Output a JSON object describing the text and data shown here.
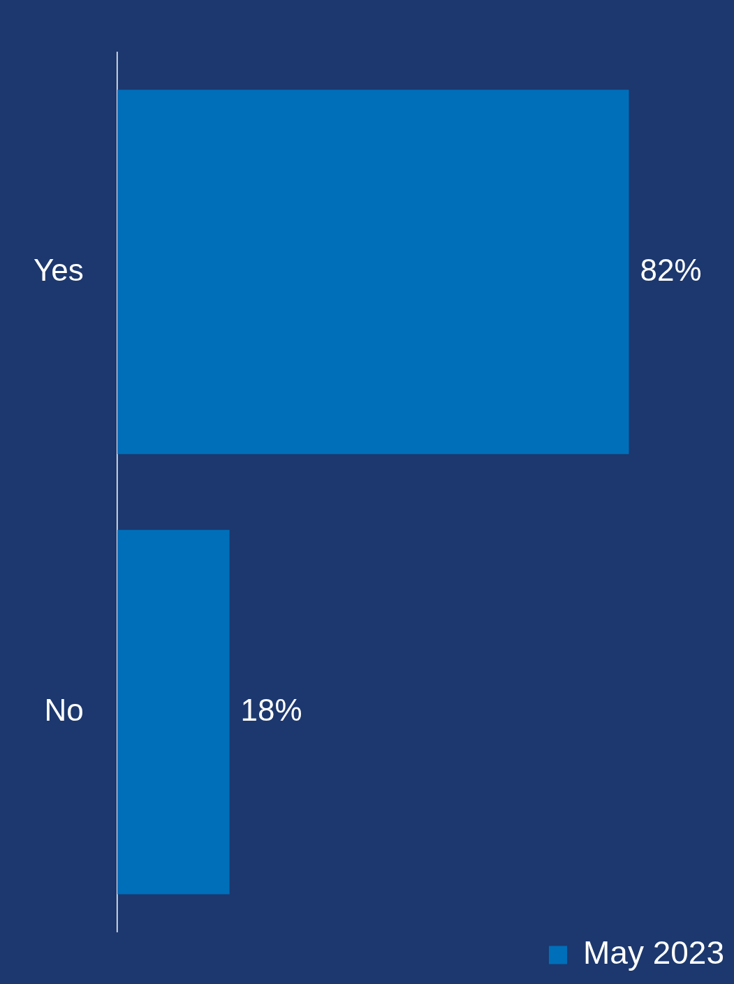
{
  "chart_data": {
    "type": "bar",
    "orientation": "horizontal",
    "categories": [
      "Yes",
      "No"
    ],
    "series": [
      {
        "name": "May 2023",
        "color": "#006fba",
        "values": [
          82,
          18
        ],
        "value_labels": [
          "82%",
          "18%"
        ]
      }
    ],
    "legend": "bottom right"
  }
}
